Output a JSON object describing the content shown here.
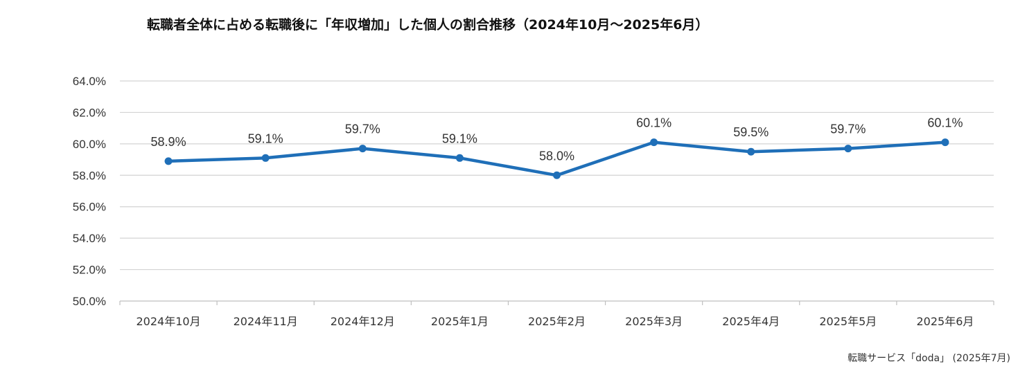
{
  "source_note": "転職サービス「doda」 (2025年7月)",
  "chart_data": {
    "type": "line",
    "title": "転職者全体に占める転職後に「年収増加」した個人の割合推移（2024年10月～2025年6月）",
    "xlabel": "",
    "ylabel": "",
    "categories": [
      "2024年10月",
      "2024年11月",
      "2024年12月",
      "2025年1月",
      "2025年2月",
      "2025年3月",
      "2025年4月",
      "2025年5月",
      "2025年6月"
    ],
    "values": [
      58.9,
      59.1,
      59.7,
      59.1,
      58.0,
      60.1,
      59.5,
      59.7,
      60.1
    ],
    "value_labels": [
      "58.9%",
      "59.1%",
      "59.7%",
      "59.1%",
      "58.0%",
      "60.1%",
      "59.5%",
      "59.7%",
      "60.1%"
    ],
    "yticks": [
      50.0,
      52.0,
      54.0,
      56.0,
      58.0,
      60.0,
      62.0,
      64.0
    ],
    "ytick_labels": [
      "50.0%",
      "52.0%",
      "54.0%",
      "56.0%",
      "58.0%",
      "60.0%",
      "62.0%",
      "64.0%"
    ],
    "ylim": [
      50,
      64
    ],
    "grid": true,
    "legend": false,
    "line_color": "#1f6fb8",
    "grid_color": "#d3d3d3",
    "axis_color": "#bfbfbf"
  }
}
